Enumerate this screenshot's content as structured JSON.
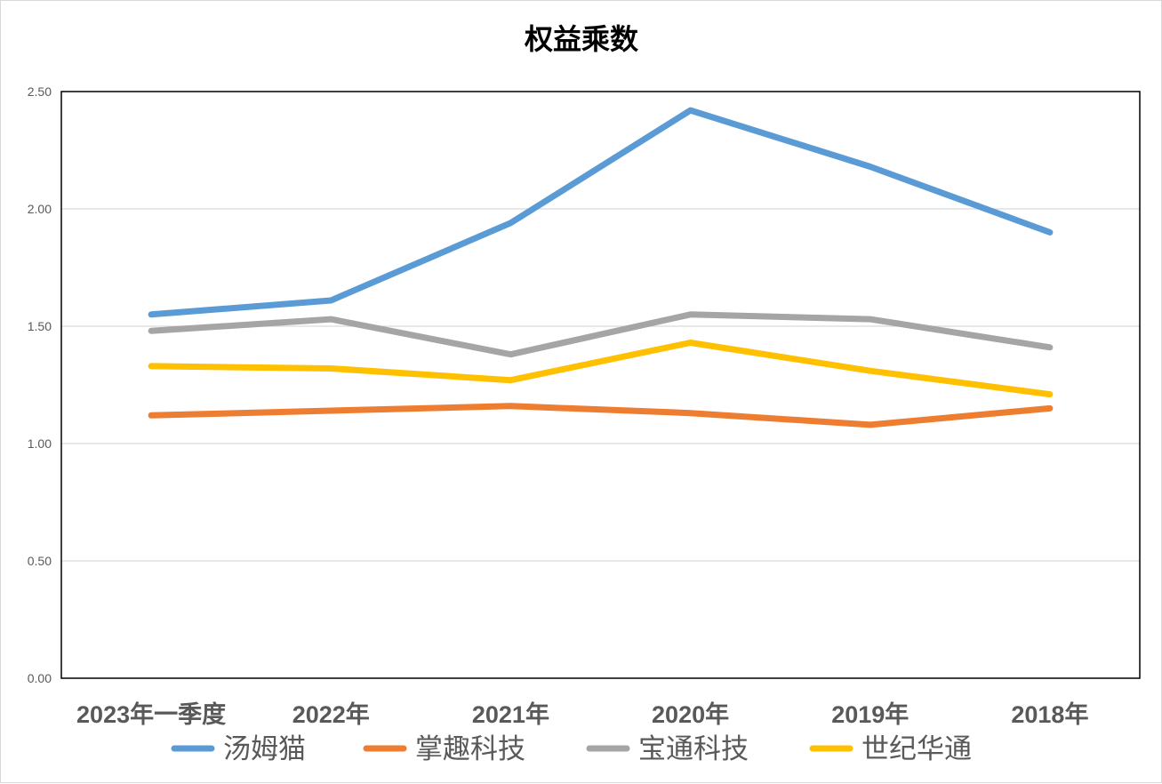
{
  "chart_data": {
    "type": "line",
    "title": "权益乘数",
    "xlabel": "",
    "ylabel": "",
    "categories": [
      "2023年一季度",
      "2022年",
      "2021年",
      "2020年",
      "2019年",
      "2018年"
    ],
    "ylim": [
      0,
      2.5
    ],
    "yticks": [
      "0.00",
      "0.50",
      "1.00",
      "1.50",
      "2.00",
      "2.50"
    ],
    "grid": true,
    "legend_position": "bottom",
    "series": [
      {
        "name": "汤姆猫",
        "color": "#5B9BD5",
        "values": [
          1.55,
          1.61,
          1.94,
          2.42,
          2.18,
          1.9
        ]
      },
      {
        "name": "掌趣科技",
        "color": "#ED7D31",
        "values": [
          1.12,
          1.14,
          1.16,
          1.13,
          1.08,
          1.15
        ]
      },
      {
        "name": "宝通科技",
        "color": "#A5A5A5",
        "values": [
          1.48,
          1.53,
          1.38,
          1.55,
          1.53,
          1.41
        ]
      },
      {
        "name": "世纪华通",
        "color": "#FFC000",
        "values": [
          1.33,
          1.32,
          1.27,
          1.43,
          1.31,
          1.21
        ]
      }
    ]
  }
}
